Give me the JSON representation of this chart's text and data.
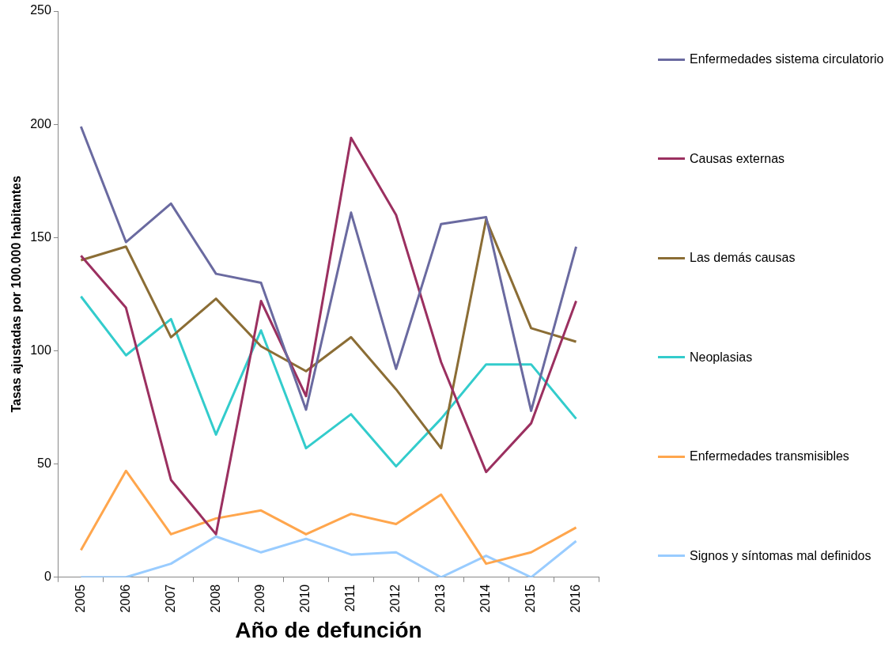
{
  "chart_data": {
    "type": "line",
    "xlabel": "Año de defunción",
    "ylabel": "Tasas ajustadas por 100.000 habitantes",
    "categories": [
      "2005",
      "2006",
      "2007",
      "2008",
      "2009",
      "2010",
      "2011",
      "2012",
      "2013",
      "2014",
      "2015",
      "2016"
    ],
    "series": [
      {
        "name": "Enfermedades sistema circulatorio",
        "color": "#6a6aa0",
        "values": [
          199,
          148,
          165,
          134,
          130,
          74,
          161,
          92,
          156,
          159,
          73.5,
          146
        ]
      },
      {
        "name": "Causas externas",
        "color": "#9b3060",
        "values": [
          142,
          119,
          43,
          19,
          122,
          80,
          194,
          160,
          95,
          46.5,
          68,
          122
        ]
      },
      {
        "name": "Las demás causas",
        "color": "#8b6d35",
        "values": [
          140,
          146,
          106,
          123,
          102,
          91,
          106,
          83,
          57,
          158,
          110,
          104
        ]
      },
      {
        "name": "Neoplasias",
        "color": "#33cccc",
        "values": [
          124,
          98,
          114,
          63,
          109,
          57,
          72,
          49,
          70,
          94,
          94,
          70
        ]
      },
      {
        "name": "Enfermedades transmisibles",
        "color": "#ffa64d",
        "values": [
          12,
          47,
          19,
          26,
          29.5,
          19,
          28,
          23.5,
          36.5,
          6,
          11,
          22
        ]
      },
      {
        "name": "Signos y síntomas mal definidos",
        "color": "#99ccff",
        "values": [
          0,
          0,
          6,
          18,
          11,
          17,
          10,
          11,
          0,
          9.5,
          0,
          16
        ]
      }
    ],
    "ylim": [
      0,
      250
    ],
    "yticks": [
      0,
      50,
      100,
      150,
      200,
      250
    ],
    "grid": false,
    "legend": "right",
    "marker": "none",
    "line_style": "solid"
  }
}
